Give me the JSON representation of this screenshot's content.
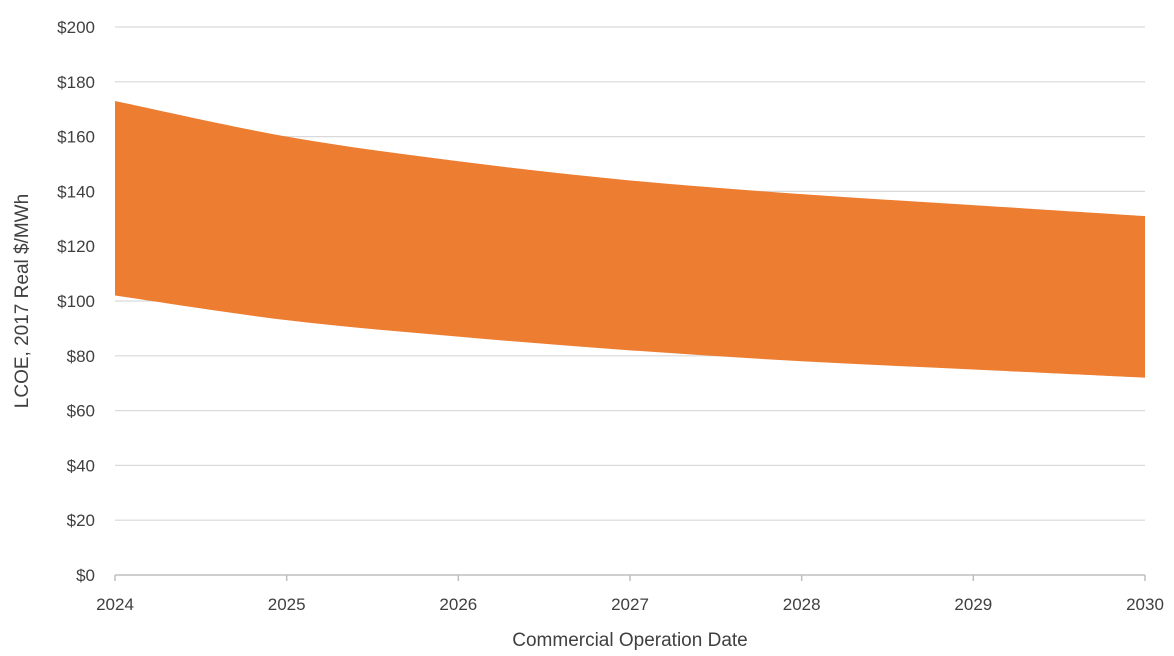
{
  "chart_data": {
    "type": "area",
    "x": [
      2024,
      2025,
      2026,
      2027,
      2028,
      2029,
      2030
    ],
    "series": [
      {
        "role": "lower",
        "values": [
          102,
          93,
          87,
          82,
          78,
          75,
          72
        ]
      },
      {
        "role": "upper",
        "values": [
          173,
          160,
          151,
          144,
          139,
          135,
          131
        ]
      }
    ],
    "title": "",
    "xlabel": "Commercial Operation Date",
    "ylabel": "LCOE, 2017 Real $/MWh",
    "xlim": [
      2024,
      2030
    ],
    "ylim": [
      0,
      200
    ],
    "y_ticks": [
      0,
      20,
      40,
      60,
      80,
      100,
      120,
      140,
      160,
      180,
      200
    ],
    "y_tick_labels": [
      "$0",
      "$20",
      "$40",
      "$60",
      "$80",
      "$100",
      "$120",
      "$140",
      "$160",
      "$180",
      "$200"
    ],
    "x_tick_labels": [
      "2024",
      "2025",
      "2026",
      "2027",
      "2028",
      "2029",
      "2030"
    ],
    "grid": "horizontal",
    "legend": "none",
    "colors": {
      "band": "#ED7D31",
      "grid": "#d9d9d9",
      "axis": "#bfbfbf",
      "text": "#404040"
    }
  }
}
